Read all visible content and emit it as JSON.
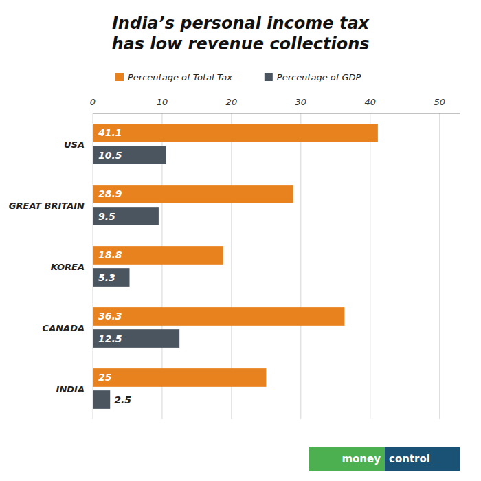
{
  "chart_data": {
    "type": "bar",
    "orientation": "horizontal",
    "title": "India’s personal income tax\nhas low revenue collections",
    "categories": [
      "USA",
      "GREAT BRITAIN",
      "KOREA",
      "CANADA",
      "INDIA"
    ],
    "series": [
      {
        "name": "Percentage of Total Tax",
        "color": "#e8821e",
        "values": [
          41.1,
          28.9,
          18.8,
          36.3,
          25.0
        ]
      },
      {
        "name": "Percentage of GDP",
        "color": "#4a5560",
        "values": [
          10.5,
          9.5,
          5.3,
          12.5,
          2.5
        ]
      }
    ],
    "xlim": [
      0,
      53
    ],
    "xticks": [
      0,
      10,
      20,
      30,
      40,
      50
    ],
    "grid": true,
    "legend": "top",
    "data_labels": true,
    "annotations": [
      "money",
      "control"
    ]
  }
}
